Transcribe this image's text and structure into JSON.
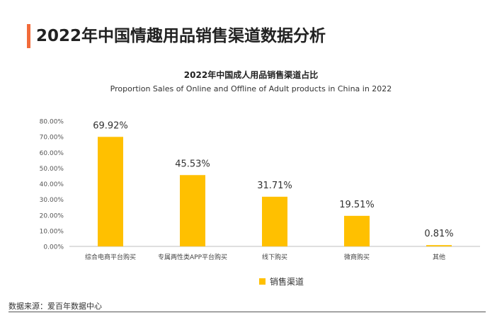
{
  "page_title": "2022年中国情趣用品销售渠道数据分析",
  "accent_color": "#f26b3a",
  "source": "数据来源：爱百年数据中心",
  "chart_data": {
    "type": "bar",
    "title": "2022年中国成人用品销售渠道占比",
    "subtitle": "Proportion Sales of Online and Offline of Adult products in China in 2022",
    "categories": [
      "综合电商平台购买",
      "专属两性类APP平台购买",
      "线下购买",
      "微商购买",
      "其他"
    ],
    "series": [
      {
        "name": "销售渠道",
        "values": [
          69.92,
          45.53,
          31.71,
          19.51,
          0.81
        ],
        "labels": [
          "69.92%",
          "45.53%",
          "31.71%",
          "19.51%",
          "0.81%"
        ],
        "color": "#ffc000"
      }
    ],
    "ylim": [
      0,
      80
    ],
    "yticks": [
      "0.00%",
      "10.00%",
      "20.00%",
      "30.00%",
      "40.00%",
      "50.00%",
      "60.00%",
      "70.00%",
      "80.00%"
    ],
    "grid": false,
    "legend": "bottom-center"
  }
}
